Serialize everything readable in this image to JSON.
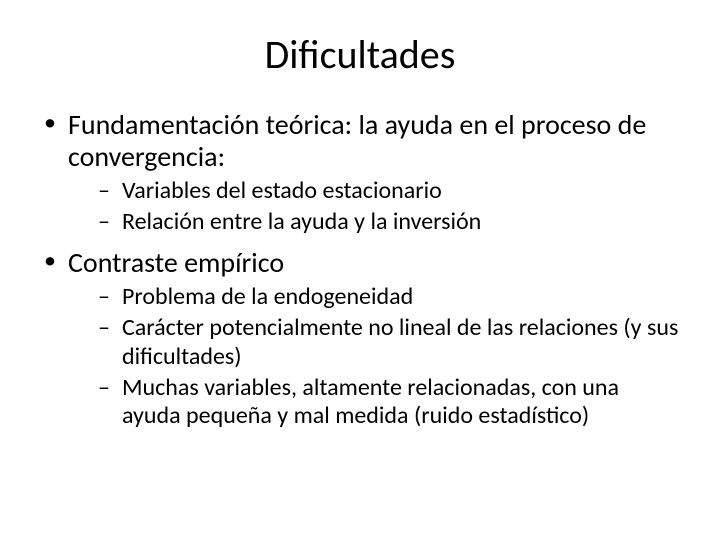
{
  "slide": {
    "title": "Dificultades",
    "title_fontsize": 40,
    "body_fontsize_l1": 28,
    "body_fontsize_l2": 24,
    "background_color": "#ffffff",
    "text_color": "#000000",
    "bullets": [
      {
        "text": "Fundamentación teórica: la ayuda en el proceso de convergencia:",
        "children": [
          {
            "text": "Variables del estado estacionario"
          },
          {
            "text": "Relación entre la ayuda y la inversión"
          }
        ]
      },
      {
        "text": "Contraste empírico",
        "children": [
          {
            "text": "Problema de la endogeneidad"
          },
          {
            "text": "Carácter potencialmente no lineal de las relaciones (y sus dificultades)"
          },
          {
            "text": "Muchas variables, altamente relacionadas, con una ayuda pequeña y mal medida (ruido estadístico)"
          }
        ]
      }
    ]
  }
}
